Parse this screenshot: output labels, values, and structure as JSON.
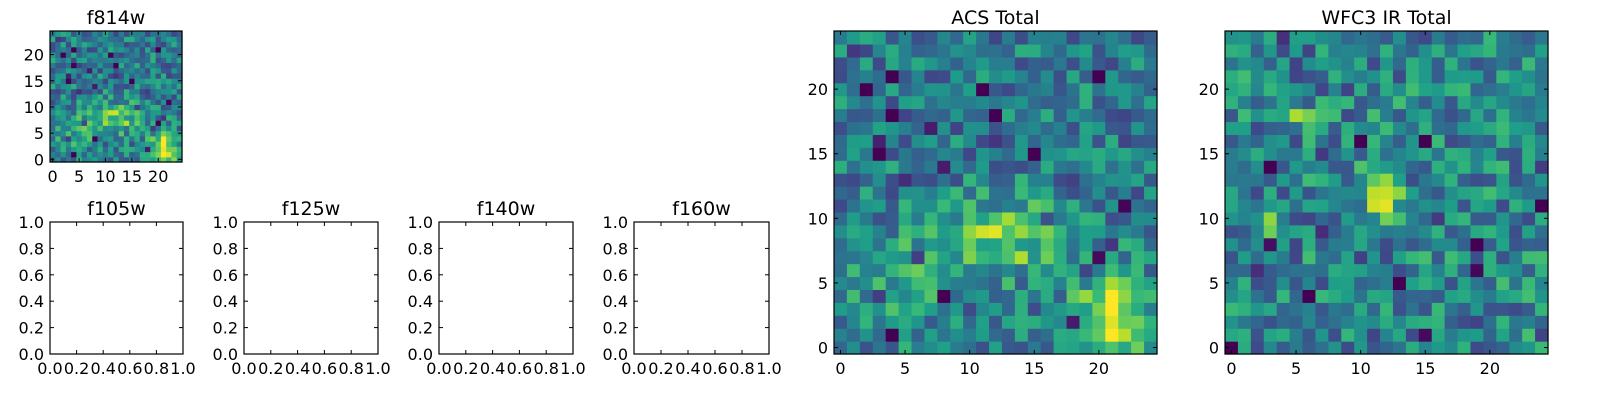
{
  "colormap": {
    "name": "viridis",
    "stops": [
      "#440154",
      "#482878",
      "#3e4a89",
      "#31688e",
      "#26828e",
      "#1f9e89",
      "#35b779",
      "#6ece58",
      "#b5de2b",
      "#fde725"
    ]
  },
  "chart_data": [
    {
      "id": "f814w",
      "type": "heatmap",
      "title": "f814w",
      "grid_size": [
        25,
        25
      ],
      "xlim": [
        -0.5,
        24.5
      ],
      "ylim": [
        -0.5,
        24.5
      ],
      "xticks": [
        0,
        5,
        10,
        15,
        20
      ],
      "yticks": [
        0,
        5,
        10,
        15,
        20
      ],
      "xtick_labels": [
        "0",
        "5",
        "10",
        "15",
        "20"
      ],
      "ytick_labels": [
        "0",
        "5",
        "10",
        "15",
        "20"
      ],
      "blobs": [
        {
          "x": 21,
          "y": 2,
          "sx": 2.2,
          "sy": 2.2,
          "amp": 0.55
        },
        {
          "x": 12,
          "y": 8,
          "sx": 3.5,
          "sy": 2.0,
          "amp": 0.35
        },
        {
          "x": 4,
          "y": 5,
          "sx": 3.0,
          "sy": 3.0,
          "amp": 0.15
        }
      ],
      "base": 0.42,
      "noise": 0.22,
      "seed": 7
    },
    {
      "id": "f105w",
      "type": "empty",
      "title": "f105w",
      "xlim": [
        0,
        1
      ],
      "ylim": [
        0,
        1
      ],
      "xticks": [
        0,
        0.2,
        0.4,
        0.6,
        0.8,
        1.0
      ],
      "yticks": [
        0,
        0.2,
        0.4,
        0.6,
        0.8,
        1.0
      ],
      "xtick_labels": [
        "0.0",
        "0.2",
        "0.4",
        "0.6",
        "0.8",
        "1.0"
      ],
      "ytick_labels": [
        "0.0",
        "0.2",
        "0.4",
        "0.6",
        "0.8",
        "1.0"
      ]
    },
    {
      "id": "f125w",
      "type": "empty",
      "title": "f125w",
      "xlim": [
        0,
        1
      ],
      "ylim": [
        0,
        1
      ],
      "xticks": [
        0,
        0.2,
        0.4,
        0.6,
        0.8,
        1.0
      ],
      "yticks": [
        0,
        0.2,
        0.4,
        0.6,
        0.8,
        1.0
      ],
      "xtick_labels": [
        "0.0",
        "0.2",
        "0.4",
        "0.6",
        "0.8",
        "1.0"
      ],
      "ytick_labels": [
        "0.0",
        "0.2",
        "0.4",
        "0.6",
        "0.8",
        "1.0"
      ]
    },
    {
      "id": "f140w",
      "type": "empty",
      "title": "f140w",
      "xlim": [
        0,
        1
      ],
      "ylim": [
        0,
        1
      ],
      "xticks": [
        0,
        0.2,
        0.4,
        0.6,
        0.8,
        1.0
      ],
      "yticks": [
        0,
        0.2,
        0.4,
        0.6,
        0.8,
        1.0
      ],
      "xtick_labels": [
        "0.0",
        "0.2",
        "0.4",
        "0.6",
        "0.8",
        "1.0"
      ],
      "ytick_labels": [
        "0.0",
        "0.2",
        "0.4",
        "0.6",
        "0.8",
        "1.0"
      ]
    },
    {
      "id": "f160w",
      "type": "empty",
      "title": "f160w",
      "xlim": [
        0,
        1
      ],
      "ylim": [
        0,
        1
      ],
      "xticks": [
        0,
        0.2,
        0.4,
        0.6,
        0.8,
        1.0
      ],
      "yticks": [
        0,
        0.2,
        0.4,
        0.6,
        0.8,
        1.0
      ],
      "xtick_labels": [
        "0.0",
        "0.2",
        "0.4",
        "0.6",
        "0.8",
        "1.0"
      ],
      "ytick_labels": [
        "0.0",
        "0.2",
        "0.4",
        "0.6",
        "0.8",
        "1.0"
      ]
    },
    {
      "id": "acs-total",
      "type": "heatmap",
      "title": "ACS Total",
      "grid_size": [
        25,
        25
      ],
      "xlim": [
        -0.5,
        24.5
      ],
      "ylim": [
        -0.5,
        24.5
      ],
      "xticks": [
        0,
        5,
        10,
        15,
        20
      ],
      "yticks": [
        0,
        5,
        10,
        15,
        20
      ],
      "xtick_labels": [
        "0",
        "5",
        "10",
        "15",
        "20"
      ],
      "ytick_labels": [
        "0",
        "5",
        "10",
        "15",
        "20"
      ],
      "blobs": [
        {
          "x": 21,
          "y": 2.5,
          "sx": 2.2,
          "sy": 2.2,
          "amp": 0.55
        },
        {
          "x": 12.5,
          "y": 8.5,
          "sx": 3.5,
          "sy": 2.0,
          "amp": 0.35
        },
        {
          "x": 4,
          "y": 5,
          "sx": 3.0,
          "sy": 3.0,
          "amp": 0.15
        }
      ],
      "base": 0.42,
      "noise": 0.22,
      "seed": 7
    },
    {
      "id": "wfc3-ir-total",
      "type": "heatmap",
      "title": "WFC3 IR Total",
      "grid_size": [
        25,
        25
      ],
      "xlim": [
        -0.5,
        24.5
      ],
      "ylim": [
        -0.5,
        24.5
      ],
      "xticks": [
        0,
        5,
        10,
        15,
        20
      ],
      "yticks": [
        0,
        5,
        10,
        15,
        20
      ],
      "xtick_labels": [
        "0",
        "5",
        "10",
        "15",
        "20"
      ],
      "ytick_labels": [
        "0",
        "5",
        "10",
        "15",
        "20"
      ],
      "blobs": [
        {
          "x": 11.5,
          "y": 11.5,
          "sx": 1.0,
          "sy": 1.4,
          "amp": 0.5
        },
        {
          "x": 5,
          "y": 18,
          "sx": 0.7,
          "sy": 0.7,
          "amp": 0.45
        },
        {
          "x": 3,
          "y": 10,
          "sx": 0.6,
          "sy": 0.6,
          "amp": 0.4
        }
      ],
      "base": 0.45,
      "noise": 0.25,
      "seed": 19
    }
  ]
}
